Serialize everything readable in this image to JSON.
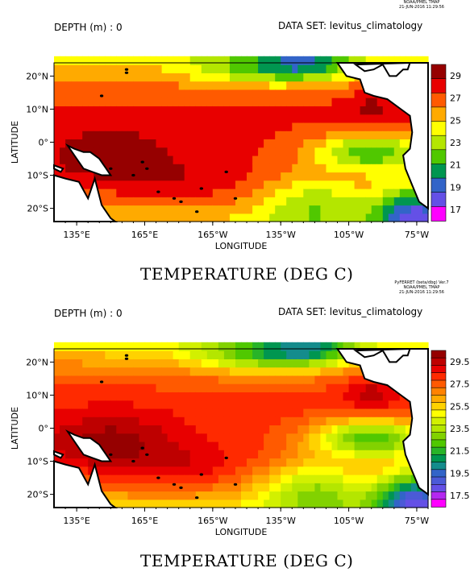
{
  "chart_data": [
    {
      "type": "heatmap",
      "title": "TEMPERATURE (DEG C)",
      "depth_label": "DEPTH (m) : 0",
      "dataset_label": "DATA SET: levitus_climatology",
      "ferret_credit": [
        "NOAA/PMEL TMAP",
        "21-JUN-2016 11:29:56"
      ],
      "xlabel": "LONGITUDE",
      "ylabel": "LATITUDE",
      "xticks": [
        "135°E",
        "165°E",
        "165°W",
        "135°W",
        "105°W",
        "75°W"
      ],
      "yticks": [
        "20°N",
        "10°N",
        "0°",
        "10°S",
        "20°S"
      ],
      "xlim": [
        125,
        290
      ],
      "ylim": [
        -24,
        24
      ],
      "colorbar_levels": [
        "29",
        "27",
        "25",
        "23",
        "21",
        "19",
        "17"
      ],
      "colorbar_colors": [
        "#960000",
        "#e80000",
        "#ff5a00",
        "#ffaa00",
        "#ffff00",
        "#b4e600",
        "#50c800",
        "#009650",
        "#3264c8",
        "#6450e6",
        "#ff00ff"
      ]
    },
    {
      "type": "heatmap",
      "title": "TEMPERATURE (DEG C)",
      "depth_label": "DEPTH (m) : 0",
      "dataset_label": "DATA SET: levitus_climatology",
      "ferret_credit": [
        "PyFERRET (beta/dbg) Ver.7",
        "NOAA/PMEL TMAP",
        "21-JUN-2016 11:29:56"
      ],
      "xlabel": "LONGITUDE",
      "ylabel": "LATITUDE",
      "xticks": [
        "135°E",
        "165°E",
        "165°W",
        "135°W",
        "105°W",
        "75°W"
      ],
      "yticks": [
        "20°N",
        "10°N",
        "0°",
        "10°S",
        "20°S"
      ],
      "xlim": [
        125,
        290
      ],
      "ylim": [
        -24,
        24
      ],
      "colorbar_levels": [
        "29.5",
        "27.5",
        "25.5",
        "23.5",
        "21.5",
        "19.5",
        "17.5"
      ],
      "colorbar_colors": [
        "#960000",
        "#be0000",
        "#e80000",
        "#ff2a00",
        "#ff5a00",
        "#ff8200",
        "#ffaa00",
        "#ffd200",
        "#ffff00",
        "#d2f000",
        "#b4e600",
        "#82d200",
        "#50c800",
        "#28b428",
        "#009650",
        "#148c8c",
        "#3264c8",
        "#4b5ad7",
        "#6450e6",
        "#b428f0",
        "#ff00ff"
      ]
    }
  ]
}
